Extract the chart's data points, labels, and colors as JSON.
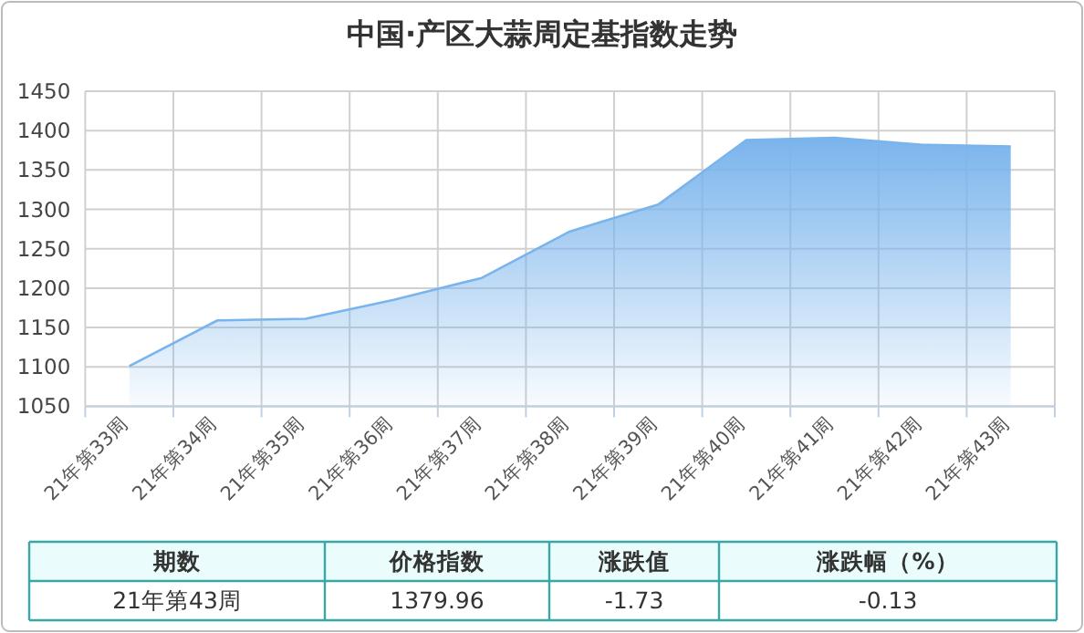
{
  "chart_data": {
    "type": "area",
    "title": "中国·产区大蒜周定基指数走势",
    "categories": [
      "21年第33周",
      "21年第34周",
      "21年第35周",
      "21年第36周",
      "21年第37周",
      "21年第38周",
      "21年第39周",
      "21年第40周",
      "21年第41周",
      "21年第42周",
      "21年第43周"
    ],
    "values": [
      1101,
      1159,
      1161,
      1185,
      1213,
      1272,
      1306,
      1388,
      1391,
      1382,
      1380
    ],
    "color": "#7ab4ec",
    "ylim": [
      1050,
      1450
    ],
    "yticks": [
      1050,
      1100,
      1150,
      1200,
      1250,
      1300,
      1350,
      1400,
      1450
    ],
    "grid": true,
    "annotations": [
      "期数",
      "价格指数",
      "涨跌值",
      "涨跌幅（%）",
      "21年第43周",
      "1379.96",
      "-1.73",
      "-0.13"
    ]
  }
}
